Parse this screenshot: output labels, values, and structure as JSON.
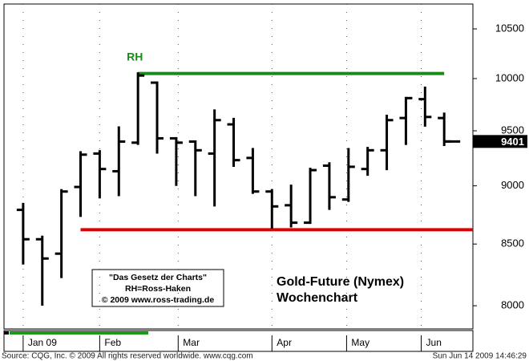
{
  "chart_data": {
    "type": "ohlc",
    "title": "Gold-Future (Nymex)",
    "subtitle": "Wochenchart",
    "note_lines": [
      "\"Das Gesetz der Charts\"",
      "RH=Ross-Haken",
      "© 2009 www.ross-trading.de"
    ],
    "source": "Source: CQG, Inc. © 2009 All rights reserved worldwide. www.cqg.com",
    "timestamp": "Sun Jun 14 2009 14:46:29",
    "color": "#000000",
    "open": [
      8790,
      8540,
      8420,
      8990,
      9290,
      9130,
      9390,
      9960,
      9430,
      9400,
      9290,
      9560,
      9250,
      8950,
      8830,
      8680,
      9180,
      8880,
      9150,
      9320,
      9620,
      9800,
      9620
    ],
    "high": [
      8840,
      8560,
      8960,
      9300,
      9310,
      9530,
      10050,
      9960,
      9430,
      9400,
      9690,
      9610,
      9330,
      8960,
      9000,
      9150,
      9200,
      9330,
      9340,
      9640,
      9810,
      9910,
      9660
    ],
    "low": [
      8340,
      8010,
      8230,
      8740,
      8900,
      8920,
      9380,
      9300,
      9010,
      8920,
      8830,
      9180,
      8940,
      8640,
      8650,
      8680,
      8800,
      8870,
      9100,
      9150,
      9380,
      9550,
      9370
    ],
    "close": [
      8540,
      8380,
      8950,
      9280,
      9150,
      9400,
      10030,
      9430,
      9390,
      9320,
      9600,
      9230,
      8950,
      8820,
      8680,
      9140,
      8900,
      9170,
      9320,
      9600,
      9810,
      9630,
      9401
    ],
    "xlim": [
      -1,
      23.5
    ],
    "xticks": [
      {
        "value": 0,
        "label": "Jan 09"
      },
      {
        "value": 4,
        "label": "Feb"
      },
      {
        "value": 8.1,
        "label": "Mar"
      },
      {
        "value": 13,
        "label": "Apr"
      },
      {
        "value": 16.9,
        "label": "May"
      },
      {
        "value": 20.8,
        "label": "Jun"
      }
    ],
    "ylim": [
      7820,
      10760
    ],
    "yticks": [
      8000,
      8500,
      9000,
      9500,
      10000,
      10500
    ],
    "log_scale": true,
    "grid": "x",
    "lines": [
      {
        "name": "RH",
        "value": 10050,
        "color": "#1a8a1a",
        "from": 6,
        "to": 22
      },
      {
        "value": 8620,
        "color": "#e00000",
        "from": 3,
        "to": 23.5
      }
    ]
  }
}
